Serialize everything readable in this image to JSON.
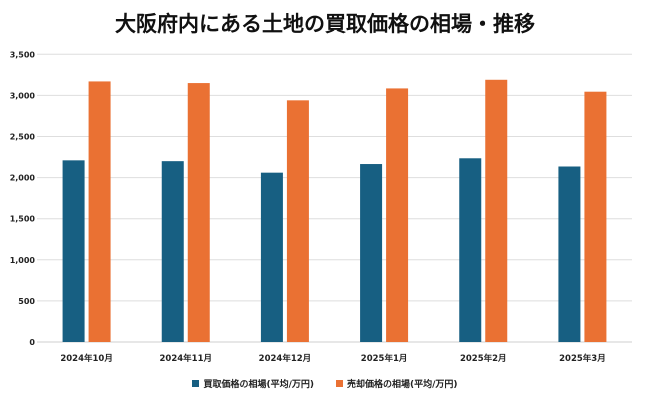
{
  "chart_data": {
    "type": "bar",
    "title": "大阪府内にある土地の買取価格の相場・推移",
    "categories": [
      "2024年10月",
      "2024年11月",
      "2024年12月",
      "2025年1月",
      "2025年2月",
      "2025年3月"
    ],
    "series": [
      {
        "name": "買取価格の相場(平均/万円)",
        "color": "#175f82",
        "values": [
          2210,
          2200,
          2060,
          2165,
          2235,
          2135
        ]
      },
      {
        "name": "売却価格の相場(平均/万円)",
        "color": "#ea7133",
        "values": [
          3170,
          3150,
          2940,
          3085,
          3190,
          3045
        ]
      }
    ],
    "yticks": [
      "0",
      "500",
      "1,000",
      "1,500",
      "2,000",
      "2,500",
      "3,000",
      "3,500"
    ],
    "ylim": [
      0,
      3500
    ],
    "grid": true,
    "legend": "bottom"
  }
}
